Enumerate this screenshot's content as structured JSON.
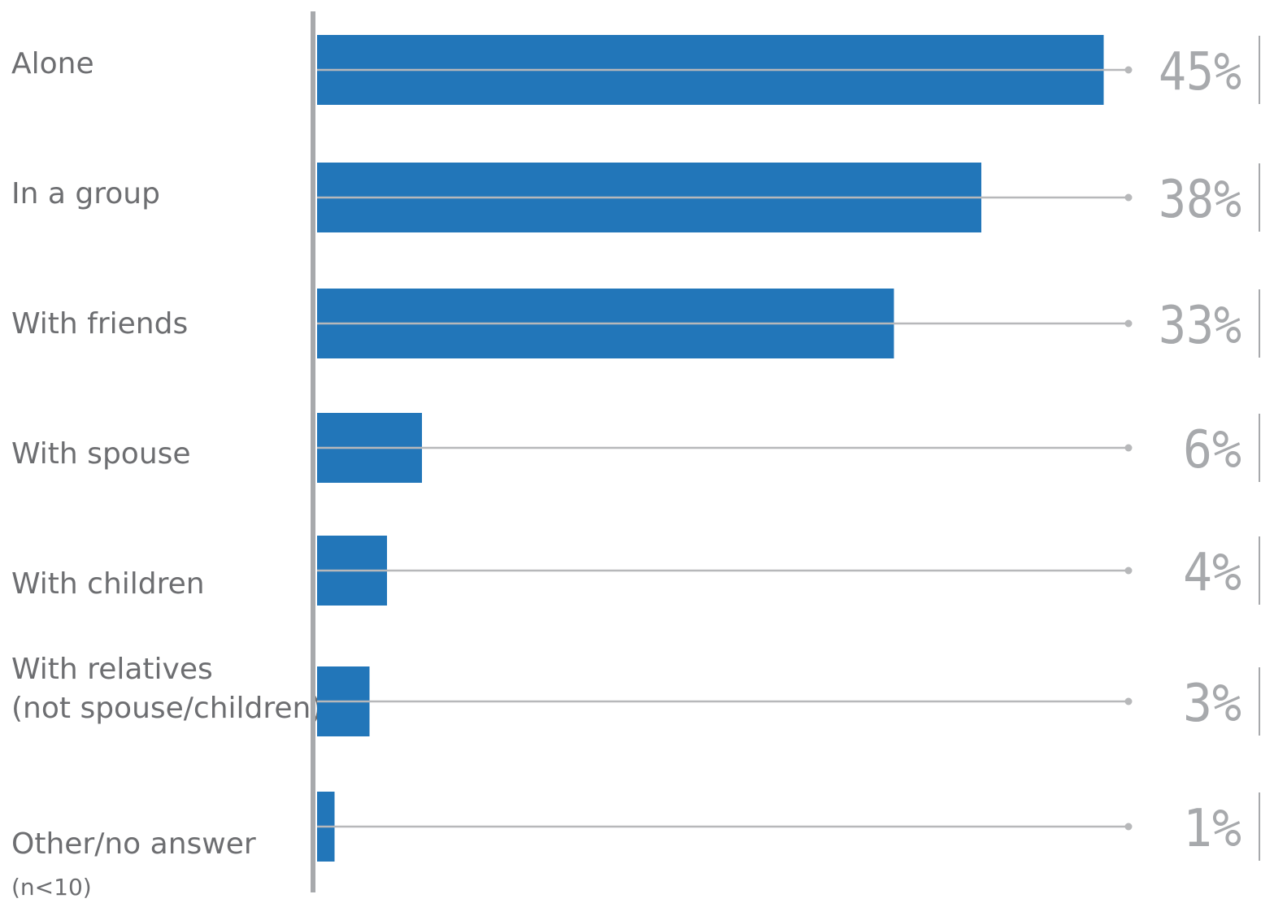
{
  "chart_data": {
    "type": "bar",
    "orientation": "horizontal",
    "categories": [
      "Alone",
      "In a group",
      "With friends",
      "With spouse",
      "With children",
      "With relatives\n(not spouse/children)",
      "Other/no answer"
    ],
    "category_notes": [
      "",
      "",
      "",
      "",
      "",
      "",
      "(n<10)"
    ],
    "values": [
      45,
      38,
      33,
      6,
      4,
      3,
      1
    ],
    "value_labels": [
      "45%",
      "38%",
      "33%",
      "6%",
      "4%",
      "3%",
      "1%"
    ],
    "unit": "%",
    "grid": false,
    "legend": "none",
    "colors": {
      "bar": "#2276b9",
      "leader_line": "#b7b8ba",
      "axis": "#a7a9ac",
      "label_text": "#6d6e71",
      "value_text": "#a7a9ac"
    }
  }
}
